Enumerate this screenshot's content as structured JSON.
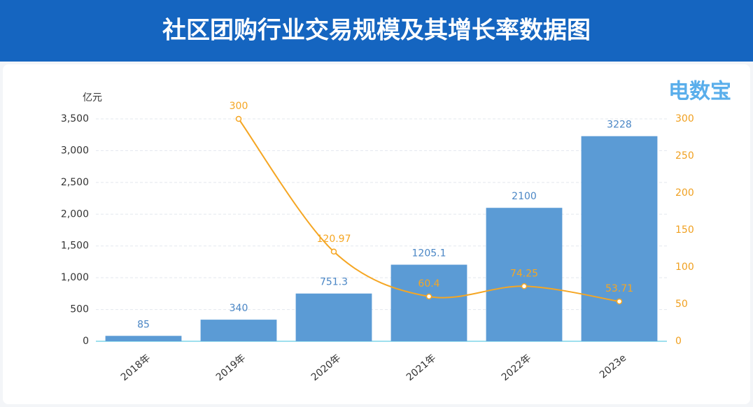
{
  "chart_data": {
    "type": "bar",
    "title": "社区团购行业交易规模及其增长率数据图",
    "y_axis_label": "亿元",
    "watermark": "电数宝",
    "categories": [
      "2018年",
      "2019年",
      "2020年",
      "2021年",
      "2022年",
      "2023e"
    ],
    "series": [
      {
        "type": "bar",
        "color": "#5b9bd5",
        "values": [
          85,
          340,
          751.3,
          1205.1,
          2100,
          3228
        ]
      },
      {
        "type": "line",
        "axis": "y2",
        "color": "#f5a623",
        "values": [
          null,
          300,
          120.97,
          60.4,
          74.25,
          53.71
        ]
      }
    ],
    "ylim": [
      0,
      3500
    ],
    "yticks": [
      0,
      500,
      {
        "value": 1000,
        "label": "1,000"
      },
      {
        "value": 1500,
        "label": "1,500"
      },
      {
        "value": 2000,
        "label": "2,000"
      },
      {
        "value": 2500,
        "label": "2,500"
      },
      {
        "value": 3000,
        "label": "3,000"
      },
      {
        "value": 3500,
        "label": "3,500"
      }
    ],
    "y2lim": [
      0,
      300
    ],
    "y2ticks": [
      0,
      50,
      100,
      150,
      200,
      250,
      300
    ],
    "grid": true
  }
}
